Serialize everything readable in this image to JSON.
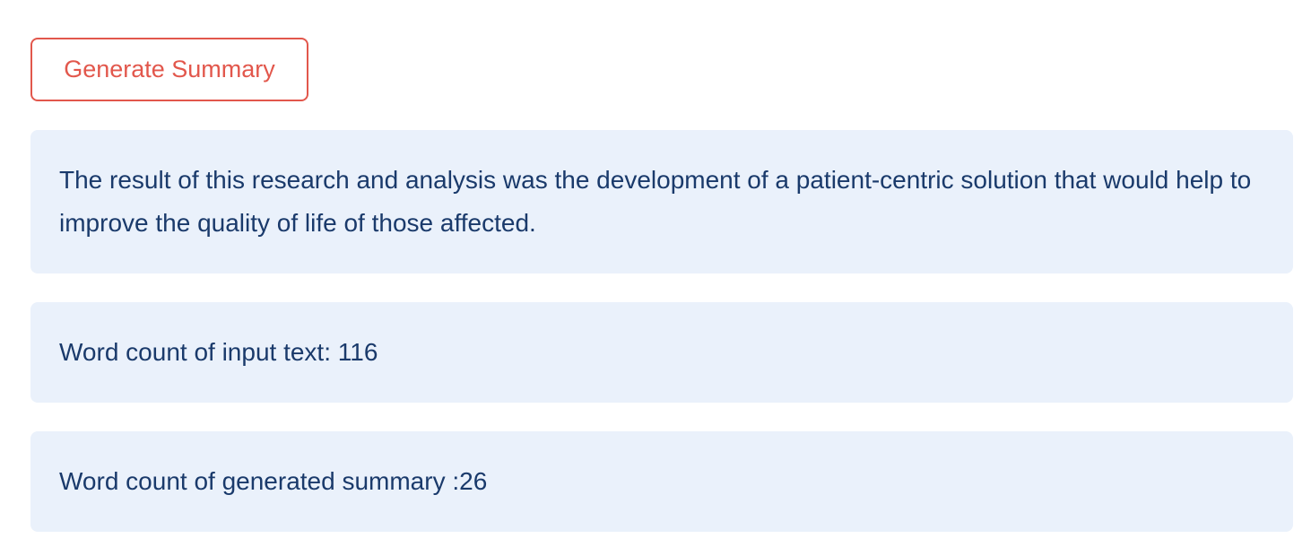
{
  "toolbar": {
    "generate_label": "Generate Summary"
  },
  "results": {
    "summary_text": "The result of this research and analysis was the development of a patient-centric solution that would help to improve the quality of life of those affected.",
    "input_word_count_text": "Word count of input text: 116",
    "summary_word_count_text": "Word count of generated summary :26"
  },
  "colors": {
    "button_accent": "#e2574c",
    "alert_background": "#eaf1fb",
    "alert_text": "#1a3a6b"
  }
}
